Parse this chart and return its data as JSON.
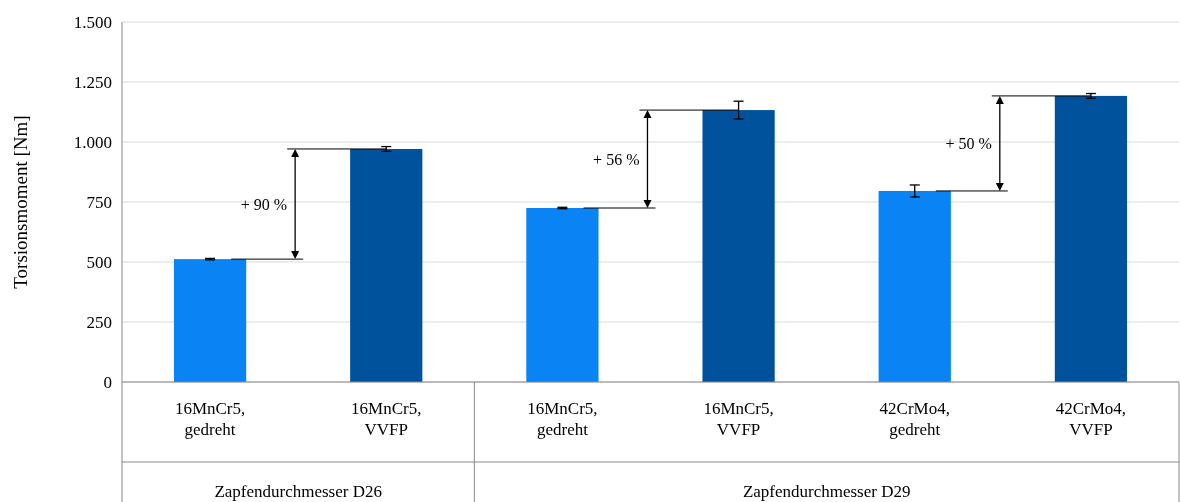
{
  "chart_data": {
    "type": "bar",
    "ylabel": "Torsionsmoment [Nm]",
    "categories": [
      "16MnCr5, gedreht",
      "16MnCr5, VVFP",
      "16MnCr5, gedreht",
      "16MnCr5, VVFP",
      "42CrMo4, gedreht",
      "42CrMo4, VVFP"
    ],
    "series": [
      {
        "values": [
          512,
          971,
          725,
          1133,
          796,
          1192
        ],
        "colors": [
          "#0a84f5",
          "#00529c",
          "#0a84f5",
          "#00529c",
          "#0a84f5",
          "#00529c"
        ],
        "errors": [
          3,
          10,
          3,
          37,
          25,
          10
        ]
      }
    ],
    "ylim": [
      0,
      1500
    ],
    "yticks": [
      {
        "value": 0,
        "label": "0"
      },
      {
        "value": 250,
        "label": "250"
      },
      {
        "value": 500,
        "label": "500"
      },
      {
        "value": 750,
        "label": "750"
      },
      {
        "value": 1000,
        "label": "1.000"
      },
      {
        "value": 1250,
        "label": "1.250"
      },
      {
        "value": 1500,
        "label": "1.500"
      }
    ],
    "grid": "y",
    "annotations": [
      "+ 90 %",
      "+ 56 %",
      "+ 50 %",
      "Zapfendurchmesser D26",
      "Zapfendurchmesser D29"
    ]
  }
}
